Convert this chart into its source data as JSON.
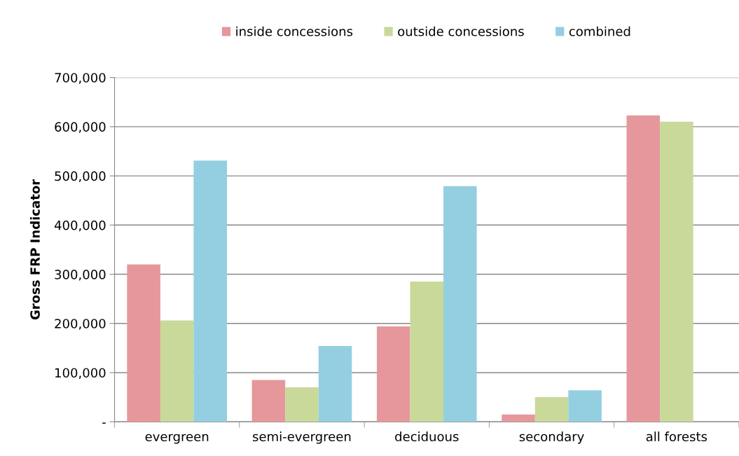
{
  "chart_data": {
    "type": "bar",
    "ylabel": "Gross FRP Indicator",
    "categories": [
      "evergreen",
      "semi-evergreen",
      "deciduous",
      "secondary",
      "all forests"
    ],
    "series": [
      {
        "name": "inside concessions",
        "color": "#e6979b",
        "values": [
          320000,
          85000,
          194000,
          15000,
          623000
        ]
      },
      {
        "name": "outside concessions",
        "color": "#c8d99a",
        "values": [
          206000,
          70000,
          285000,
          50000,
          610000
        ]
      },
      {
        "name": "combined",
        "color": "#93cfe0",
        "values": [
          531000,
          154000,
          479000,
          64000,
          null
        ]
      }
    ],
    "ylim": [
      0,
      700000
    ],
    "yticks": [
      {
        "value": 0,
        "label": "-"
      },
      {
        "value": 100000,
        "label": "100,000"
      },
      {
        "value": 200000,
        "label": "200,000"
      },
      {
        "value": 300000,
        "label": "300,000"
      },
      {
        "value": 400000,
        "label": "400,000"
      },
      {
        "value": 500000,
        "label": "500,000"
      },
      {
        "value": 600000,
        "label": "600,000"
      },
      {
        "value": 700000,
        "label": "700,000"
      }
    ],
    "grid": "y",
    "legend": "top"
  }
}
